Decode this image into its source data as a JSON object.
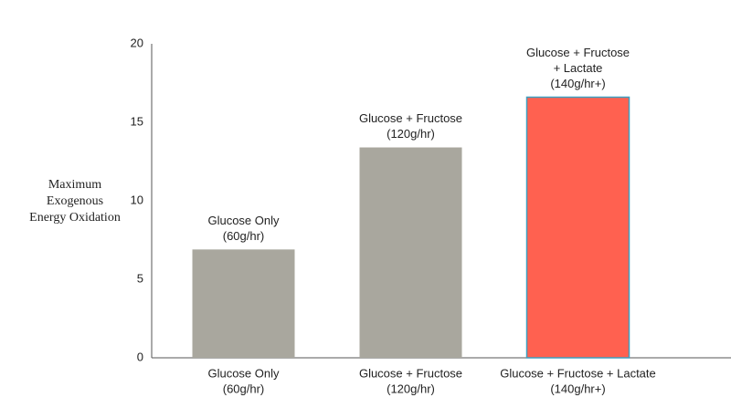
{
  "chart_data": {
    "type": "bar",
    "y_label": [
      "Maximum",
      "Exogenous",
      "Energy Oxidation"
    ],
    "categories": [
      [
        "Glucose Only",
        "(60g/hr)"
      ],
      [
        "Glucose + Fructose",
        "(120g/hr)"
      ],
      [
        "Glucose + Fructose + Lactate",
        "(140g/hr+)"
      ]
    ],
    "annotations": [
      [
        "Glucose Only",
        "(60g/hr)"
      ],
      [
        "Glucose + Fructose",
        "(120g/hr)"
      ],
      [
        "Glucose + Fructose",
        "+ Lactate",
        "(140g/hr+)"
      ]
    ],
    "values": [
      6.9,
      13.4,
      16.6
    ],
    "colors": [
      "#a9a79e",
      "#a9a79e",
      "#ff6150"
    ],
    "ylim": [
      0,
      20
    ],
    "yticks": [
      0,
      5,
      10,
      15,
      20
    ]
  }
}
